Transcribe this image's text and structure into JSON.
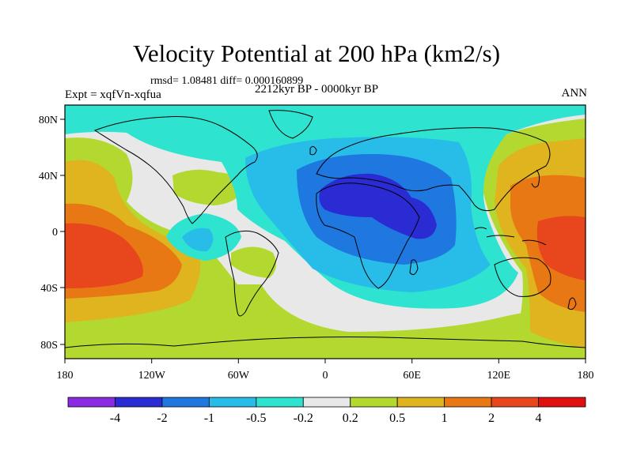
{
  "title": "Velocity Potential at 200 hPa (km2/s)",
  "stats": "rmsd= 1.08481 diff= 0.000160899",
  "experiment": "Expt = xqfVn-xqfua",
  "period": "2212kyr BP - 0000kyr BP",
  "season": "ANN",
  "axes": {
    "x_ticks": [
      "180",
      "120W",
      "60W",
      "0",
      "60E",
      "120E",
      "180"
    ],
    "y_ticks": [
      "80N",
      "40N",
      "0",
      "40S",
      "80S"
    ]
  },
  "colorbar": {
    "labels": [
      "-4",
      "-2",
      "-1",
      "-0.5",
      "-0.2",
      "0.2",
      "0.5",
      "1",
      "2",
      "4"
    ],
    "colors": [
      "#8a2be2",
      "#2b2bd4",
      "#1e78e0",
      "#28bde8",
      "#2ee3cf",
      "#e8e8e8",
      "#b3d930",
      "#e0b41e",
      "#e87814",
      "#e8461c",
      "#e01010"
    ]
  },
  "map_colors": {
    "c_m4": "#2b2bd4",
    "c_m2": "#1e78e0",
    "c_m1": "#28bde8",
    "c_m05": "#2ee3cf",
    "c_0": "#e8e8e8",
    "c_p02": "#b3d930",
    "c_p05": "#e0b41e",
    "c_p1": "#e87814",
    "c_p2": "#e8461c"
  }
}
